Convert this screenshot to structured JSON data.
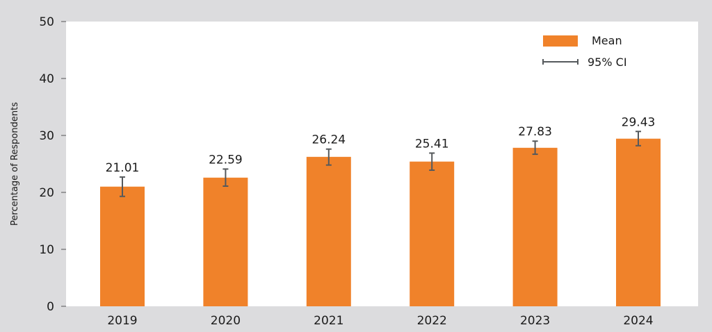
{
  "chart_data": {
    "type": "bar",
    "title": "",
    "xlabel": "",
    "ylabel": "Percentage of Respondents",
    "ylim": [
      0,
      50
    ],
    "yticks": [
      0,
      10,
      20,
      30,
      40,
      50
    ],
    "categories": [
      "2019",
      "2020",
      "2021",
      "2022",
      "2023",
      "2024"
    ],
    "series": [
      {
        "name": "Mean",
        "values": [
          21.01,
          22.59,
          26.24,
          25.41,
          27.83,
          29.43
        ],
        "labels": [
          "21.01",
          "22.59",
          "26.24",
          "25.41",
          "27.83",
          "29.43"
        ],
        "ci_low": [
          19.3,
          21.1,
          24.8,
          23.9,
          26.7,
          28.2
        ],
        "ci_high": [
          22.7,
          24.1,
          27.6,
          26.9,
          29.0,
          30.7
        ]
      }
    ],
    "legend": {
      "position": "top-right",
      "items": [
        "Mean",
        "95% CI"
      ]
    },
    "grid": false,
    "colors": {
      "bar": "#f0822a",
      "error": "#55595c",
      "background": "#dcdcde",
      "plot": "#ffffff"
    }
  }
}
